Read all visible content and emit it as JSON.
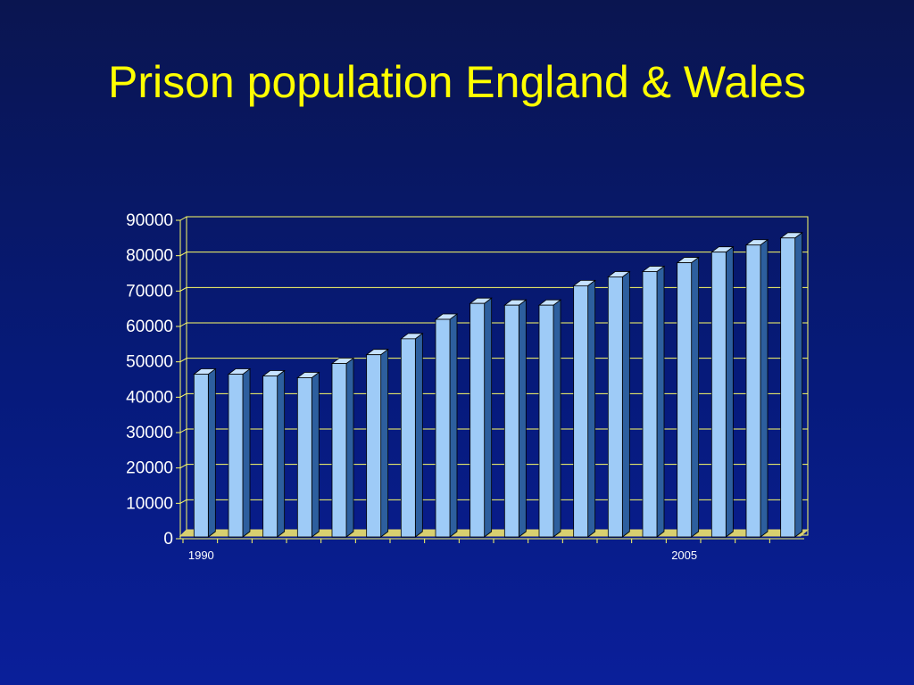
{
  "slide": {
    "title": "Prison population England & Wales"
  },
  "colors": {
    "background": "#061a7a",
    "title": "#ffff00",
    "gridline": "#ffff66",
    "floor": "#d8d070",
    "bar_front": "#9ecbf7",
    "bar_side": "#2d5f9e",
    "bar_top": "#c6e2ff",
    "text": "#ffffff"
  },
  "chart_data": {
    "type": "bar",
    "style": "3d-column",
    "x_labels_shown": [
      "1990",
      "2005"
    ],
    "x_label_positions": [
      0,
      14
    ],
    "values": [
      45500,
      45500,
      45000,
      44500,
      48500,
      51000,
      55500,
      61000,
      65500,
      65000,
      65000,
      70500,
      73000,
      74500,
      77000,
      80000,
      82000,
      84000
    ],
    "ylim": [
      0,
      90000
    ],
    "yticks": [
      0,
      10000,
      20000,
      30000,
      40000,
      50000,
      60000,
      70000,
      80000,
      90000
    ],
    "grid": true,
    "legend": "none"
  }
}
